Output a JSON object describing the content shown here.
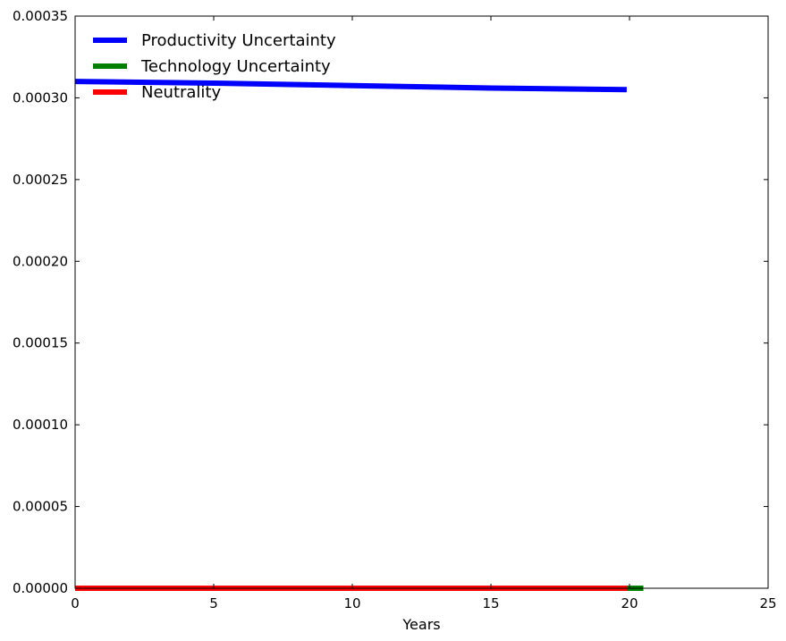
{
  "chart_data": {
    "type": "line",
    "title": "",
    "xlabel": "Years",
    "ylabel": "",
    "xlim": [
      0,
      25
    ],
    "ylim": [
      0,
      0.00035
    ],
    "xticks": [
      0,
      5,
      10,
      15,
      20,
      25
    ],
    "yticks": [
      0,
      5e-05,
      0.0001,
      0.00015,
      0.0002,
      0.00025,
      0.0003,
      0.00035
    ],
    "xtick_labels": [
      "0",
      "5",
      "10",
      "15",
      "20",
      "25"
    ],
    "ytick_labels": [
      "0.00000",
      "0.00005",
      "0.00010",
      "0.00015",
      "0.00020",
      "0.00025",
      "0.00030",
      "0.00035"
    ],
    "grid": false,
    "legend_position": "top-left",
    "series": [
      {
        "name": "Productivity Uncertainty",
        "color": "#0000ff",
        "x": [
          0,
          5,
          10,
          15,
          19.9
        ],
        "y": [
          0.00031,
          0.000309,
          0.0003075,
          0.000306,
          0.000305
        ]
      },
      {
        "name": "Technology Uncertainty",
        "color": "#008000",
        "x": [
          0,
          5,
          10,
          15,
          20.5
        ],
        "y": [
          0,
          0,
          0,
          0,
          0
        ]
      },
      {
        "name": "Neutrality",
        "color": "#ff0000",
        "x": [
          0,
          5,
          10,
          15,
          19.9
        ],
        "y": [
          0,
          0,
          0,
          0,
          0
        ]
      }
    ]
  }
}
